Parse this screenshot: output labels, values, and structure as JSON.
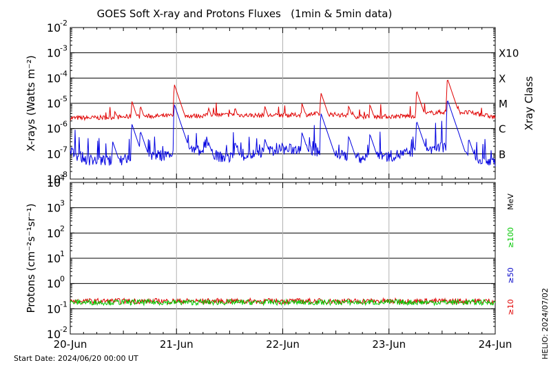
{
  "chart_data": [
    {
      "type": "line",
      "title": "GOES Soft X-ray and Protons Fluxes   (1min & 5min data)",
      "ylabel": "X-rays (Watts m⁻²)",
      "right_label": "Xray Class",
      "yscale": "log",
      "ylim": [
        1e-08,
        0.01
      ],
      "ytick_mantissa": "10",
      "ytick_exponents": [
        "-8",
        "-7",
        "-6",
        "-5",
        "-4",
        "-3",
        "-2"
      ],
      "xrange_days": [
        0,
        4
      ],
      "grid_days": [
        1,
        2,
        3
      ],
      "class_labels": [
        {
          "text": "B",
          "flux": 1e-07
        },
        {
          "text": "C",
          "flux": 1e-06
        },
        {
          "text": "M",
          "flux": 1e-05
        },
        {
          "text": "X",
          "flux": 0.0001
        },
        {
          "text": "X10",
          "flux": 0.001
        }
      ],
      "series": [
        {
          "color": "#e00000",
          "baseline": [
            [
              0,
              2.6e-06
            ],
            [
              0.3,
              2.7e-06
            ],
            [
              0.6,
              3e-06
            ],
            [
              0.95,
              3.2e-06
            ],
            [
              1.2,
              3.2e-06
            ],
            [
              1.5,
              3.5e-06
            ],
            [
              1.8,
              3.3e-06
            ],
            [
              2.1,
              3.4e-06
            ],
            [
              2.4,
              3.9e-06
            ],
            [
              2.7,
              3e-06
            ],
            [
              3.0,
              3e-06
            ],
            [
              3.25,
              3.2e-06
            ],
            [
              3.4,
              4.2e-06
            ],
            [
              3.6,
              4.8e-06
            ],
            [
              3.8,
              4e-06
            ],
            [
              4.0,
              2.8e-06
            ]
          ],
          "events": [
            [
              0.42,
              5e-06
            ],
            [
              0.58,
              1.2e-05
            ],
            [
              0.66,
              8e-06
            ],
            [
              0.98,
              5.5e-05
            ],
            [
              1.3,
              7e-06
            ],
            [
              1.55,
              7e-06
            ],
            [
              1.83,
              8e-06
            ],
            [
              2.18,
              1e-05
            ],
            [
              2.36,
              2.6e-05
            ],
            [
              2.62,
              8e-06
            ],
            [
              2.82,
              9e-06
            ],
            [
              3.26,
              3.2e-05
            ],
            [
              3.55,
              9.5e-05
            ],
            [
              3.75,
              6e-06
            ]
          ]
        },
        {
          "color": "#0000e0",
          "baseline": [
            [
              0,
              1.2e-07
            ],
            [
              0.15,
              6e-08
            ],
            [
              0.4,
              5e-08
            ],
            [
              0.7,
              8e-08
            ],
            [
              0.95,
              9e-08
            ],
            [
              1.2,
              1.3e-07
            ],
            [
              1.45,
              7e-08
            ],
            [
              1.7,
              9e-08
            ],
            [
              1.95,
              1.5e-07
            ],
            [
              2.2,
              1.5e-07
            ],
            [
              2.5,
              9e-08
            ],
            [
              2.75,
              7e-08
            ],
            [
              3.0,
              8e-08
            ],
            [
              3.3,
              1.3e-07
            ],
            [
              3.55,
              2e-07
            ],
            [
              3.75,
              8e-08
            ],
            [
              4.0,
              5e-08
            ]
          ],
          "events": [
            [
              0.4,
              3e-07
            ],
            [
              0.58,
              1.5e-06
            ],
            [
              0.66,
              8e-07
            ],
            [
              0.98,
              9e-06
            ],
            [
              1.3,
              3e-07
            ],
            [
              1.55,
              3e-07
            ],
            [
              1.83,
              4e-07
            ],
            [
              2.18,
              7e-07
            ],
            [
              2.36,
              4e-06
            ],
            [
              2.62,
              5e-07
            ],
            [
              2.82,
              6e-07
            ],
            [
              3.26,
              2e-06
            ],
            [
              3.55,
              1.4e-05
            ],
            [
              3.75,
              4e-07
            ]
          ]
        }
      ]
    },
    {
      "type": "line",
      "ylabel": "Protons (cm⁻²s⁻¹sr⁻¹)",
      "yscale": "log",
      "ylim": [
        0.01,
        10000
      ],
      "ytick_mantissa": "10",
      "ytick_exponents": [
        "-2",
        "-1",
        "0",
        "1",
        "2",
        "3",
        "4"
      ],
      "xrange_days": [
        0,
        4
      ],
      "grid_days": [
        1,
        2,
        3
      ],
      "dashed_threshold": 10,
      "unit_label": "MeV",
      "legend": [
        {
          "text": "≥10",
          "color": "#e00000"
        },
        {
          "text": "≥50",
          "color": "#0000c8"
        },
        {
          "text": "≥100",
          "color": "#00c800"
        }
      ],
      "series": [
        {
          "color": "#e00000",
          "level": 0.2
        },
        {
          "color": "#00c800",
          "level": 0.18
        }
      ],
      "x_tick_labels": [
        "20-Jun",
        "21-Jun",
        "22-Jun",
        "23-Jun",
        "24-Jun"
      ]
    }
  ],
  "footer": {
    "start_date": "Start Date: 2024/06/20 00:00 UT",
    "stamp": "HELIO: 2024/07/02"
  }
}
